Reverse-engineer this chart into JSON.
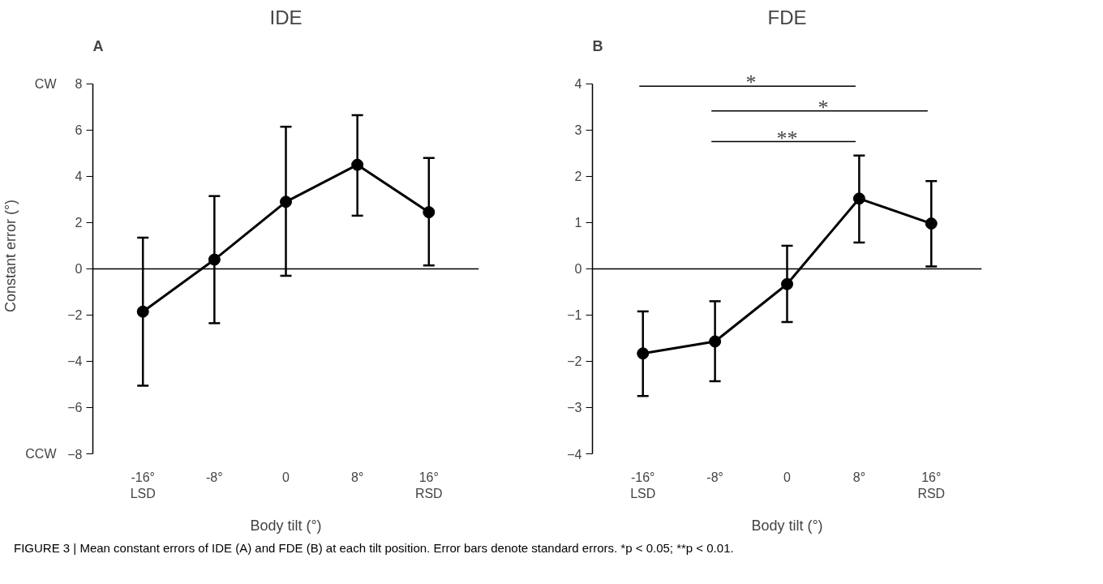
{
  "chart_data": [
    {
      "type": "line",
      "title": "IDE",
      "xlabel": "Body tilt (°)",
      "ylabel": "Constant error (°)",
      "categories": [
        "-16°\nLSD",
        "-8°",
        "0",
        "8°",
        "16°\nRSD"
      ],
      "series": [
        {
          "color": "#000000",
          "values": [
            -1.85,
            0.4,
            2.9,
            4.5,
            2.45
          ],
          "errors": [
            [
              -5.05,
              1.35
            ],
            [
              -2.35,
              3.15
            ],
            [
              -0.3,
              6.15
            ],
            [
              2.3,
              6.65
            ],
            [
              0.15,
              4.8
            ]
          ]
        }
      ],
      "ylim": [
        -8,
        8
      ],
      "yticks": [
        -8,
        -6,
        -4,
        -2,
        0,
        2,
        4,
        6,
        8
      ],
      "ref_lines": [
        {
          "axis": "y",
          "value": 0,
          "color": "#000000"
        }
      ],
      "marker": "circle",
      "line_style": "solid",
      "grid": false,
      "annotations": [
        "A",
        "CW",
        "CCW",
        "FIGURE 3 | Mean constant errors of IDE (A) and FDE (B) at each tilt position. Error bars denote standard errors. *p < 0.05; **p < 0.01."
      ]
    },
    {
      "type": "line",
      "title": "FDE",
      "xlabel": "Body tilt (°)",
      "categories": [
        "-16°\nLSD",
        "-8°",
        "0",
        "8°",
        "16°\nRSD"
      ],
      "series": [
        {
          "color": "#000000",
          "values": [
            -1.83,
            -1.57,
            -0.33,
            1.52,
            0.98
          ],
          "errors": [
            [
              -2.75,
              -0.92
            ],
            [
              -2.43,
              -0.7
            ],
            [
              -1.15,
              0.5
            ],
            [
              0.57,
              2.45
            ],
            [
              0.05,
              1.9
            ]
          ]
        }
      ],
      "ylim": [
        -4,
        4
      ],
      "yticks": [
        -4,
        -3,
        -2,
        -1,
        0,
        1,
        2,
        3,
        4
      ],
      "ref_lines": [
        {
          "axis": "y",
          "value": 0,
          "color": "#000000"
        }
      ],
      "marker": "circle",
      "line_style": "solid",
      "grid": false,
      "annotations": [
        "B",
        "*",
        "*",
        "**"
      ]
    }
  ]
}
